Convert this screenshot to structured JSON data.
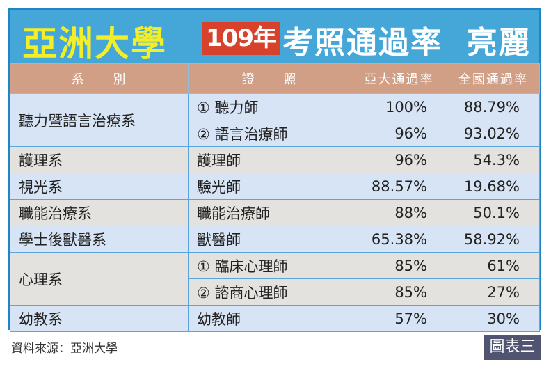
{
  "title": {
    "school": "亞洲大學",
    "year": "109年",
    "main": "考照通過率  亮麗"
  },
  "headers": [
    "系　　別",
    "證　　照",
    "亞大通過率",
    "全國通過率"
  ],
  "rows": [
    {
      "dept": "聽力暨語言治療系",
      "license": "① 聽力師",
      "asia": "100%",
      "national": "88.79%"
    },
    {
      "license": "② 語言治療師",
      "asia": "96%",
      "national": "93.02%"
    },
    {
      "dept": "護理系",
      "license": "護理師",
      "asia": "96%",
      "national": "54.3%"
    },
    {
      "dept": "視光系",
      "license": "驗光師",
      "asia": "88.57%",
      "national": "19.68%"
    },
    {
      "dept": "職能治療系",
      "license": "職能治療師",
      "asia": "88%",
      "national": "50.1%"
    },
    {
      "dept": "學士後獸醫系",
      "license": "獸醫師",
      "asia": "65.38%",
      "national": "58.92%"
    },
    {
      "dept": "心理系",
      "license": "① 臨床心理師",
      "asia": "85%",
      "national": "61%"
    },
    {
      "license": "② 諮商心理師",
      "asia": "85%",
      "national": "27%"
    },
    {
      "dept": "幼教系",
      "license": "幼教師",
      "asia": "57%",
      "national": "30%"
    }
  ],
  "source": "資料來源：亞洲大學",
  "figure_label": "圖表三",
  "colors": {
    "frame": "#1f84c8",
    "title_bg": "#44a7d8",
    "header": "#d19f86",
    "row_blue": "#d6e4f5",
    "row_grey": "#e4e2de"
  }
}
